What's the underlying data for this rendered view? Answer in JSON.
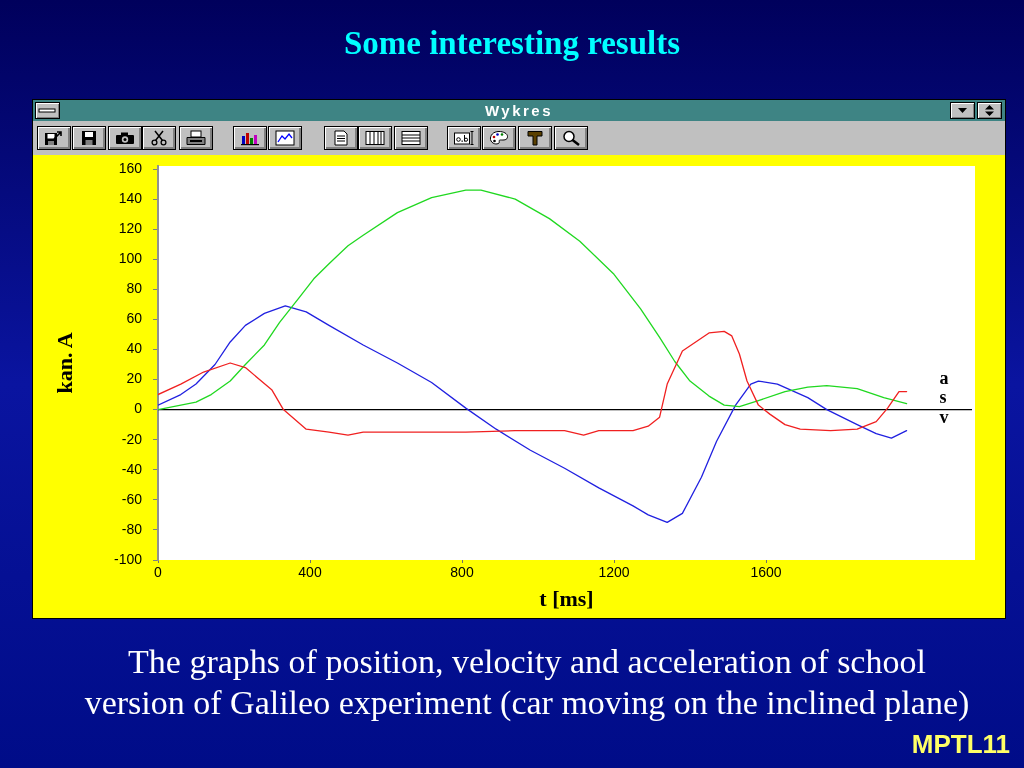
{
  "chart_data": {
    "type": "line",
    "title": "Some interesting results",
    "xlabel": "t [ms]",
    "ylabel": "kan. A",
    "annotations": [
      "Wykres",
      "The graphs of position, velocity and acceleration of school version of Galileo experiment (car moving on the inclined plane)",
      "MPTL11"
    ],
    "xlim": [
      0,
      2150
    ],
    "xticks": [
      0,
      400,
      800,
      1200,
      1600
    ],
    "ylim": [
      -100,
      162
    ],
    "yticks": [
      -100,
      -80,
      -60,
      -40,
      -20,
      0,
      20,
      40,
      60,
      80,
      100,
      120,
      140,
      160
    ],
    "ref_lines": [
      {
        "axis": "y",
        "value": 0,
        "color": "#000000"
      }
    ],
    "series": [
      {
        "name": "a",
        "color": "#f02020",
        "x": [
          0,
          60,
          120,
          190,
          230,
          300,
          330,
          390,
          450,
          500,
          540,
          670,
          810,
          940,
          1070,
          1120,
          1160,
          1250,
          1290,
          1320,
          1340,
          1380,
          1450,
          1490,
          1510,
          1530,
          1550,
          1580,
          1610,
          1650,
          1690,
          1770,
          1840,
          1890,
          1920,
          1950,
          1970
        ],
        "values": [
          10,
          17,
          25,
          31,
          28,
          13,
          0,
          -13,
          -15,
          -17,
          -15,
          -15,
          -15,
          -14,
          -14,
          -17,
          -14,
          -14,
          -11,
          -5,
          17,
          39,
          51,
          52,
          49,
          37,
          19,
          3,
          -3,
          -10,
          -13,
          -14,
          -13,
          -8,
          1,
          12,
          12
        ]
      },
      {
        "name": "s",
        "color": "#20d820",
        "x": [
          0,
          100,
          140,
          190,
          230,
          280,
          320,
          370,
          410,
          450,
          500,
          540,
          630,
          720,
          810,
          850,
          940,
          1030,
          1110,
          1200,
          1270,
          1320,
          1360,
          1400,
          1450,
          1490,
          1530,
          1580,
          1650,
          1710,
          1760,
          1840,
          1910,
          1970
        ],
        "values": [
          0,
          5,
          10,
          19,
          30,
          43,
          58,
          74,
          87,
          97,
          109,
          116,
          131,
          141,
          146,
          146,
          140,
          127,
          112,
          90,
          67,
          48,
          32,
          19,
          9,
          3,
          2,
          6,
          12,
          15,
          16,
          14,
          8,
          4
        ]
      },
      {
        "name": "v",
        "color": "#2020e0",
        "x": [
          0,
          60,
          100,
          150,
          190,
          230,
          280,
          335,
          390,
          450,
          540,
          630,
          720,
          810,
          890,
          980,
          1070,
          1160,
          1250,
          1290,
          1340,
          1380,
          1430,
          1470,
          1520,
          1560,
          1580,
          1630,
          1710,
          1760,
          1840,
          1890,
          1930,
          1970
        ],
        "values": [
          3,
          10,
          17,
          30,
          45,
          56,
          64,
          69,
          65,
          56,
          43,
          31,
          18,
          1,
          -13,
          -27,
          -39,
          -52,
          -64,
          -70,
          -75,
          -69,
          -45,
          -21,
          3,
          17,
          19,
          17,
          8,
          0,
          -10,
          -16,
          -19,
          -14
        ]
      }
    ]
  }
}
